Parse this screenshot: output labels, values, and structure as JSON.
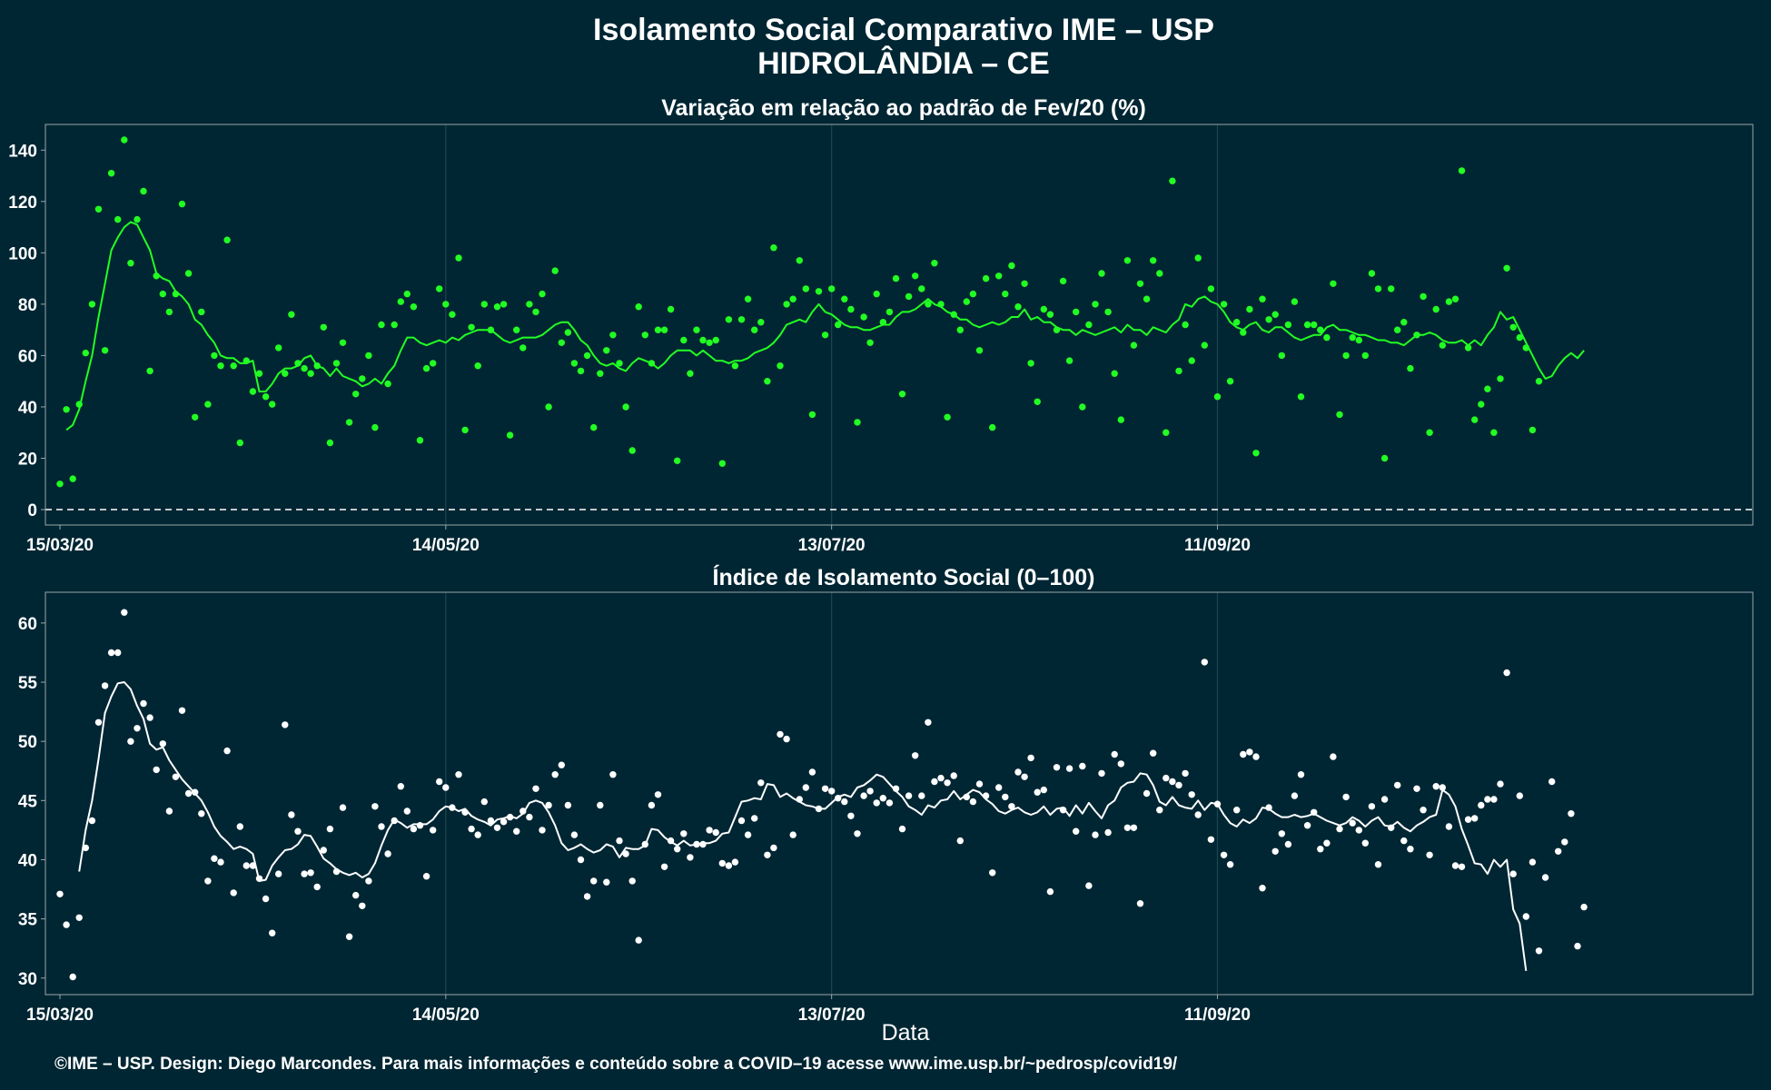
{
  "title_line1": "Isolamento Social Comparativo IME – USP",
  "title_line2": "HIDROLÂNDIA – CE",
  "xlabel": "Data",
  "footer": "©IME – USP. Design: Diego Marcondes. Para mais informações e conteúdo sobre a COVID–19 acesse www.ime.usp.br/~pedrosp/covid19/",
  "colors": {
    "background": "#002633",
    "series_top": "#22ff22",
    "series_bottom": "#ffffff",
    "zero_line": "#ffffff"
  },
  "chart_data": [
    {
      "type": "scatter",
      "title": "Variação em relação ao padrão de Fev/20 (%)",
      "x_start": "15/03/20",
      "x_end": "01/12/20",
      "x_ticks": [
        "15/03/20",
        "14/05/20",
        "13/07/20",
        "11/09/20"
      ],
      "y_ticks": [
        0,
        20,
        40,
        60,
        80,
        100,
        120,
        140
      ],
      "ylim": [
        -6,
        150
      ],
      "reference_line": 0,
      "grid": "vertical",
      "series": [
        {
          "kind": "points",
          "values": [
            10,
            39,
            12,
            41,
            61,
            80,
            117,
            62,
            131,
            113,
            144,
            96,
            113,
            124,
            54,
            91,
            84,
            77,
            84,
            119,
            92,
            36,
            77,
            41,
            60,
            56,
            105,
            56,
            26,
            58,
            46,
            53,
            44,
            41,
            63,
            53,
            76,
            57,
            55,
            53,
            56,
            71,
            26,
            57,
            65,
            34,
            45,
            51,
            60,
            32,
            72,
            49,
            72,
            81,
            84,
            79,
            27,
            55,
            57,
            86,
            80,
            76,
            98,
            31,
            71,
            56,
            80,
            70,
            79,
            80,
            29,
            70,
            63,
            80,
            77,
            84,
            40,
            93,
            65,
            69,
            57,
            54,
            60,
            32,
            53,
            62,
            68,
            57,
            40,
            23,
            79,
            68,
            57,
            70,
            70,
            78,
            19,
            66,
            53,
            70,
            66,
            65,
            66,
            18,
            74,
            56,
            74,
            82,
            70,
            73,
            50,
            102,
            56,
            80,
            82,
            97,
            86,
            37,
            85,
            68,
            86,
            72,
            82,
            78,
            34,
            75,
            65,
            84,
            73,
            77,
            90,
            45,
            83,
            91,
            86,
            80,
            96,
            80,
            36,
            76,
            70,
            81,
            84,
            62,
            90,
            32,
            91,
            84,
            95,
            79,
            88,
            57,
            42,
            78,
            76,
            70,
            89,
            58,
            77,
            40,
            72,
            80,
            92,
            77,
            53,
            35,
            97,
            64,
            88,
            82,
            97,
            92,
            30,
            128,
            54,
            72,
            58,
            98,
            64,
            86,
            44,
            80,
            50,
            73,
            69,
            78,
            22,
            82,
            74,
            76,
            60,
            72,
            81,
            44,
            72,
            72,
            70,
            67,
            88,
            37,
            60,
            67,
            66,
            60,
            92,
            86,
            20,
            86,
            70,
            73,
            55,
            68,
            83,
            30,
            78,
            64,
            81,
            82,
            132,
            63,
            35,
            41,
            47,
            30,
            51,
            94,
            71,
            67,
            63,
            31,
            50
          ]
        },
        {
          "kind": "line",
          "start_index": 1,
          "values": [
            31,
            33,
            39,
            50,
            60,
            75,
            88,
            101,
            106,
            110,
            112,
            111,
            106,
            101,
            92,
            90,
            89,
            85,
            83,
            80,
            74,
            72,
            68,
            65,
            60,
            59,
            59,
            57,
            57,
            58,
            46,
            46,
            49,
            53,
            55,
            55,
            56,
            59,
            60,
            56,
            55,
            52,
            55,
            52,
            51,
            50,
            48,
            49,
            51,
            49,
            53,
            56,
            62,
            67,
            67,
            65,
            64,
            65,
            66,
            65,
            67,
            66,
            68,
            69,
            70,
            70,
            70,
            68,
            66,
            65,
            66,
            67,
            67,
            67,
            68,
            70,
            72,
            73,
            73,
            70,
            66,
            64,
            60,
            57,
            56,
            57,
            55,
            54,
            57,
            59,
            58,
            57,
            55,
            57,
            60,
            62,
            62,
            62,
            60,
            62,
            60,
            58,
            58,
            57,
            58,
            58,
            59,
            61,
            62,
            63,
            65,
            68,
            72,
            73,
            74,
            73,
            77,
            80,
            77,
            76,
            74,
            72,
            71,
            71,
            70,
            70,
            71,
            72,
            72,
            75,
            77,
            77,
            78,
            80,
            82,
            80,
            79,
            77,
            76,
            74,
            74,
            72,
            71,
            72,
            73,
            72,
            73,
            75,
            75,
            78,
            74,
            75,
            73,
            73,
            71,
            70,
            70,
            68,
            70,
            69,
            68,
            69,
            70,
            71,
            69,
            72,
            70,
            70,
            68,
            71,
            70,
            69,
            72,
            74,
            80,
            79,
            82,
            83,
            81,
            80,
            77,
            73,
            71,
            70,
            72,
            73,
            70,
            69,
            71,
            71,
            69,
            67,
            66,
            67,
            68,
            68,
            71,
            72,
            70,
            70,
            69,
            68,
            68,
            67,
            66,
            66,
            65,
            65,
            64,
            66,
            68,
            68,
            69,
            68,
            66,
            65,
            65,
            66,
            64,
            66,
            64,
            68,
            71,
            77,
            74,
            75,
            70,
            65,
            60,
            55,
            51,
            52,
            56,
            59,
            61,
            59,
            62
          ]
        }
      ]
    },
    {
      "type": "scatter",
      "title": "Índice de Isolamento Social (0–100)",
      "x_start": "15/03/20",
      "x_end": "01/12/20",
      "x_ticks": [
        "15/03/20",
        "14/05/20",
        "13/07/20",
        "11/09/20"
      ],
      "y_ticks": [
        30,
        35,
        40,
        45,
        50,
        55,
        60
      ],
      "ylim": [
        28.6,
        62.6
      ],
      "grid": "vertical",
      "series": [
        {
          "kind": "points",
          "values": [
            37.1,
            34.5,
            30.1,
            35.1,
            41,
            43.3,
            51.6,
            54.7,
            57.5,
            57.5,
            60.9,
            50,
            51.1,
            53.2,
            52,
            47.6,
            49.8,
            44.1,
            47,
            52.6,
            45.6,
            45.7,
            43.9,
            38.2,
            40.1,
            39.8,
            49.2,
            37.2,
            42.8,
            39.5,
            39.5,
            38.4,
            36.7,
            33.8,
            38.8,
            51.4,
            43.8,
            42.4,
            38.8,
            38.9,
            37.7,
            40.8,
            42.6,
            39,
            44.4,
            33.5,
            37,
            36.1,
            38.2,
            44.5,
            42.8,
            40.5,
            43.3,
            46.2,
            44.1,
            42.6,
            42.9,
            38.6,
            42.5,
            46.6,
            46.1,
            44.4,
            47.2,
            44,
            42.6,
            42.1,
            44.9,
            43.3,
            42.7,
            43.2,
            43.6,
            42.4,
            44.1,
            43.6,
            46,
            42.5,
            44.6,
            47.2,
            48,
            44.6,
            42.1,
            40,
            36.9,
            38.2,
            44.6,
            38.1,
            47.2,
            41.6,
            40.5,
            38.2,
            33.2,
            41.3,
            44.6,
            45.5,
            39.4,
            41.6,
            40.9,
            42.2,
            40.2,
            41.3,
            41.3,
            42.5,
            42.3,
            39.7,
            39.5,
            39.8,
            43.3,
            42.1,
            43.5,
            46.5,
            40.4,
            41,
            50.6,
            50.2,
            42.1,
            45.1,
            46.1,
            47.4,
            44.3,
            46,
            45.8,
            45.2,
            44.9,
            43.7,
            42.2,
            45.4,
            45.8,
            44.8,
            45.2,
            44.8,
            46,
            42.6,
            45.4,
            48.8,
            45.4,
            51.6,
            46.6,
            46.9,
            46.5,
            47.1,
            41.6,
            45.3,
            44.9,
            46.4,
            45.4,
            38.9,
            46.1,
            45.3,
            44.5,
            47.4,
            47,
            48.6,
            45.7,
            45.9,
            37.3,
            47.8,
            44.2,
            47.7,
            42.4,
            47.9,
            37.8,
            42.1,
            47.3,
            42.3,
            48.9,
            48.1,
            42.7,
            42.7,
            36.3,
            45.6,
            49,
            44.2,
            46.9,
            46.6,
            46.3,
            47.3,
            45.5,
            43.8,
            56.7,
            41.7,
            44.7,
            40.4,
            39.6,
            44.2,
            48.9,
            49.1,
            48.7,
            37.6,
            44.4,
            40.7,
            42.2,
            41.3,
            45.4,
            47.2,
            42.9,
            44,
            40.9,
            41.4,
            48.7,
            42.6,
            45.3,
            43.1,
            42.5,
            41.4,
            44.5,
            39.6,
            45.1,
            42.7,
            46.3,
            41.6,
            40.9,
            46,
            44.2,
            40.4,
            46.2,
            46.1,
            42.8,
            39.5,
            39.4,
            43.4,
            43.5,
            44.6,
            45.1,
            45.1,
            46.4,
            55.8,
            38.8,
            45.4,
            35.2,
            39.8,
            32.3,
            38.5,
            46.6,
            40.7,
            41.5,
            43.9,
            32.7,
            36
          ]
        },
        {
          "kind": "line",
          "start_index": 3,
          "values": [
            39,
            42.5,
            45,
            48.5,
            52.4,
            53.8,
            54.9,
            55,
            54.4,
            53,
            51.9,
            49.8,
            49.3,
            49.5,
            48.4,
            47.6,
            46.8,
            46.2,
            45.6,
            45,
            44,
            42.8,
            42,
            41.5,
            40.9,
            41.1,
            40.9,
            40.5,
            38.2,
            38.3,
            39.5,
            40.2,
            40.8,
            40.9,
            41.3,
            42.1,
            42,
            41.1,
            40.1,
            39.7,
            39.2,
            38.9,
            38.7,
            38.9,
            38.5,
            38.8,
            39.7,
            41.2,
            42.5,
            43.4,
            43.1,
            42.7,
            43,
            43,
            43,
            43.4,
            44.1,
            44.5,
            44.4,
            44.1,
            44.3,
            43.7,
            43.4,
            43.2,
            42.9,
            43.4,
            43.5,
            43.7,
            43.5,
            43.9,
            44.8,
            45,
            44.8,
            44,
            42.9,
            41.4,
            40.8,
            41,
            41.3,
            40.9,
            40.6,
            40.8,
            41.3,
            41.1,
            40.2,
            41,
            40.9,
            40.9,
            41.2,
            42.6,
            42.5,
            41.9,
            41.5,
            41.2,
            41.6,
            41.2,
            41.3,
            41.4,
            41.4,
            41.6,
            42.2,
            42.3,
            43.6,
            44.9,
            45,
            45.2,
            45.1,
            46.4,
            46.3,
            45.3,
            45.6,
            45.2,
            44.9,
            44.6,
            44.5,
            44.3,
            44.3,
            44.8,
            45.3,
            45.5,
            45.3,
            46.1,
            46.3,
            46.7,
            47.2,
            47,
            46.4,
            45.8,
            45.3,
            44.5,
            44.2,
            43.8,
            44.6,
            44.4,
            45,
            45.1,
            45.8,
            45.1,
            45.5,
            45.9,
            45.7,
            45.1,
            44.7,
            44.1,
            43.9,
            44.2,
            44.4,
            44,
            43.8,
            44,
            44.5,
            43.8,
            44.3,
            44.4,
            43.7,
            44.6,
            43.9,
            44.8,
            44.1,
            43.5,
            44.6,
            45,
            46.1,
            46.5,
            46.6,
            47.3,
            47.2,
            46.3,
            44.9,
            44.6,
            45.3,
            44.6,
            44.4,
            44.3,
            45,
            44.2,
            44.8,
            44.7,
            43.8,
            43.1,
            42.8,
            43.4,
            43.1,
            43.5,
            44.4,
            44.3,
            43.9,
            43.6,
            43.6,
            43.8,
            43.6,
            43.7,
            43.9,
            43.6,
            43.3,
            43.1,
            42.9,
            43.1,
            43.6,
            43.3,
            42.8,
            43.3,
            43.6,
            42.9,
            42.8,
            43.2,
            42.7,
            42.4,
            42.9,
            43.2,
            43.6,
            43.8,
            45.9,
            45.5,
            44.5,
            42.6,
            41.2,
            39.7,
            39.6,
            38.8,
            40,
            39.4,
            40,
            35.8,
            34.6,
            30.6
          ]
        }
      ]
    }
  ]
}
